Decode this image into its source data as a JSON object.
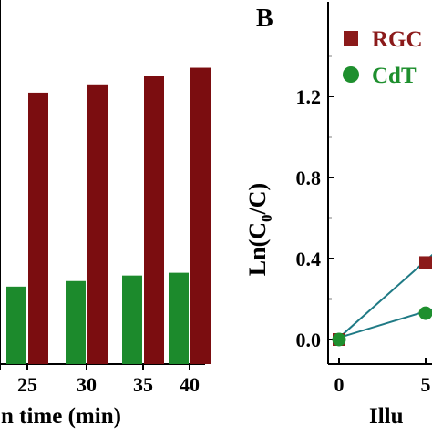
{
  "panel_b_label": "B",
  "chart_data": [
    {
      "type": "bar",
      "title": "",
      "xlabel": "n time (min)",
      "ylabel": "",
      "categories": [
        "25",
        "30",
        "35",
        "40"
      ],
      "series": [
        {
          "values": [
            0.98,
            1.01,
            1.04,
            1.07
          ],
          "color": "#7b0d10"
        },
        {
          "values": [
            0.28,
            0.3,
            0.32,
            0.33
          ],
          "color": "#1c8a2c"
        }
      ],
      "visible_left_tick": "0",
      "ylim": [
        0,
        1.2
      ],
      "grid": false
    },
    {
      "type": "scatter",
      "title": "",
      "xlabel": "Illu",
      "ylabel": "Ln(C0/C)",
      "ylabel_parts": {
        "prefix": "Ln(C",
        "subscript": "0",
        "suffix": "/C)"
      },
      "x_ticks": [
        "0",
        "5"
      ],
      "y_ticks": [
        "0.0",
        "0.4",
        "0.8",
        "1.2"
      ],
      "ylim": [
        -0.07,
        1.45
      ],
      "xlim": [
        -0.3,
        10
      ],
      "grid": false,
      "legend": {
        "position": "top-right",
        "entries": [
          {
            "label": "RGC",
            "marker": "square",
            "color": "#8b1a1a"
          },
          {
            "label": "CdT",
            "marker": "circle",
            "color": "#1e8f2e"
          }
        ]
      },
      "series": [
        {
          "marker": "square",
          "color": "#8b1a1a",
          "x": [
            0,
            5
          ],
          "y": [
            0.0,
            0.38
          ]
        },
        {
          "marker": "circle",
          "color": "#1e8f2e",
          "x": [
            0,
            5
          ],
          "y": [
            0.0,
            0.13
          ]
        }
      ],
      "fit_lines": [
        {
          "color": "#1f7a85",
          "x": [
            0,
            10
          ],
          "y": [
            0.0,
            0.76
          ]
        },
        {
          "color": "#1f7a85",
          "x": [
            0,
            10
          ],
          "y": [
            0.0,
            0.26
          ]
        }
      ]
    }
  ]
}
